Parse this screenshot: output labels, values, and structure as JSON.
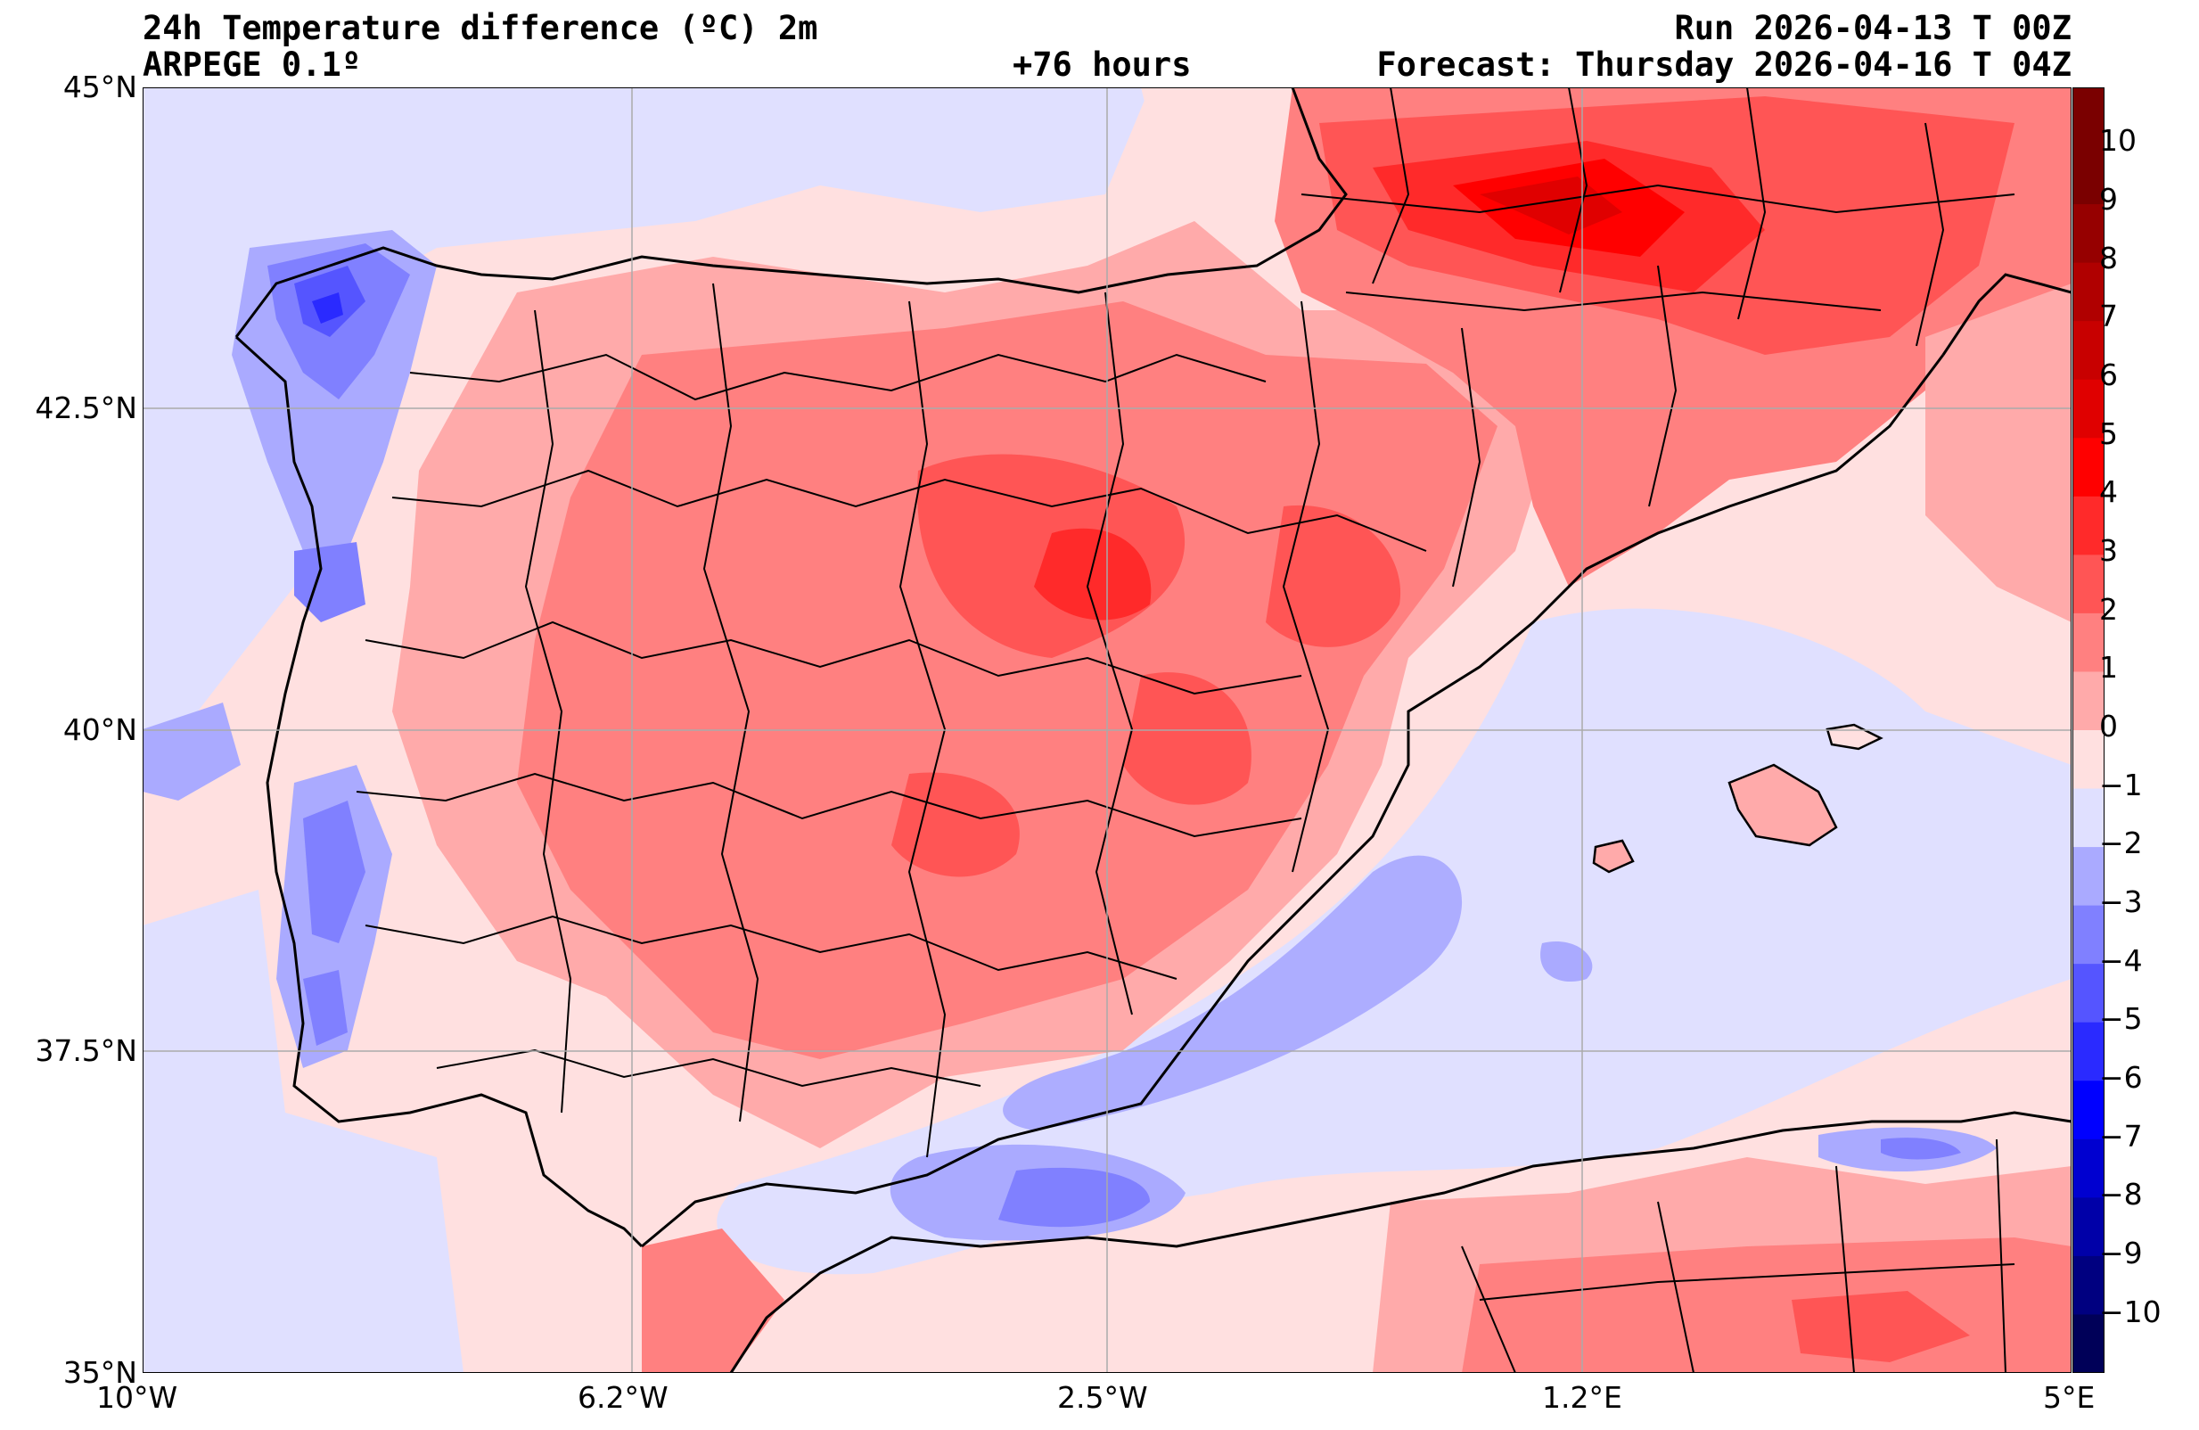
{
  "header": {
    "title": "24h Temperature difference (ºC) 2m",
    "model": "ARPEGE 0.1º",
    "lead_time": "+76 hours",
    "run": "Run 2026-04-13 T 00Z",
    "forecast": "Forecast: Thursday 2026-04-16 T 04Z"
  },
  "axes": {
    "lon_labels": [
      "10°W",
      "6.2°W",
      "2.5°W",
      "1.2°E",
      "5°E"
    ],
    "lat_labels": [
      "45°N",
      "42.5°N",
      "40°N",
      "37.5°N",
      "35°N"
    ]
  },
  "colorbar": {
    "labels": [
      "10",
      "9",
      "8",
      "7",
      "6",
      "5",
      "4",
      "3",
      "2",
      "1",
      "0",
      "−1",
      "−2",
      "−3",
      "−4",
      "−5",
      "−6",
      "−7",
      "−8",
      "−9",
      "−10"
    ],
    "colors": [
      "#7a0000",
      "#960000",
      "#b00000",
      "#c80000",
      "#e00000",
      "#ff0000",
      "#ff2a2a",
      "#ff5555",
      "#ff8080",
      "#ffaaaa",
      "#ffe0e0",
      "#e0e0ff",
      "#aaaaff",
      "#8080ff",
      "#5555ff",
      "#2a2aff",
      "#0000ff",
      "#0000d0",
      "#0000a8",
      "#000080",
      "#000058"
    ]
  }
}
